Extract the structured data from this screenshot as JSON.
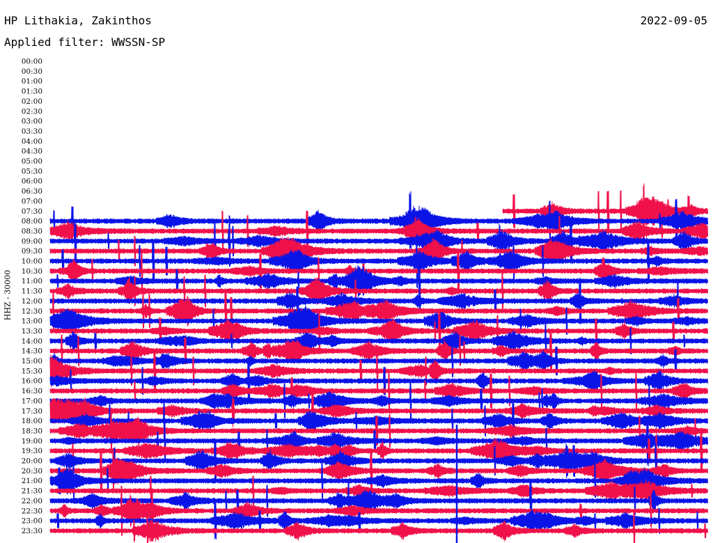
{
  "header": {
    "station": "HP Lithakia, Zakinthos",
    "date": "2022-09-05",
    "filter": "Applied filter: WWSSN-SP"
  },
  "chart_data": {
    "type": "line",
    "title": "HP Lithakia, Zakinthos",
    "ylabel": "HHZ - 30000",
    "row_labels": [
      "00:00",
      "00:30",
      "01:00",
      "01:30",
      "02:00",
      "02:30",
      "03:00",
      "03:30",
      "04:00",
      "04:30",
      "05:00",
      "05:30",
      "06:00",
      "06:30",
      "07:00",
      "07:30",
      "08:00",
      "08:30",
      "09:00",
      "09:30",
      "10:00",
      "10:30",
      "11:00",
      "11:30",
      "12:00",
      "12:30",
      "13:00",
      "13:30",
      "14:00",
      "14:30",
      "15:00",
      "15:30",
      "16:00",
      "16:30",
      "17:00",
      "17:30",
      "18:00",
      "18:30",
      "19:00",
      "19:30",
      "20:00",
      "20:30",
      "21:00",
      "21:30",
      "22:00",
      "22:30",
      "23:00",
      "23:30"
    ],
    "series_colors": [
      "#0a14e6",
      "#f0104a"
    ],
    "recording_starts": "07:30",
    "grid": false
  }
}
